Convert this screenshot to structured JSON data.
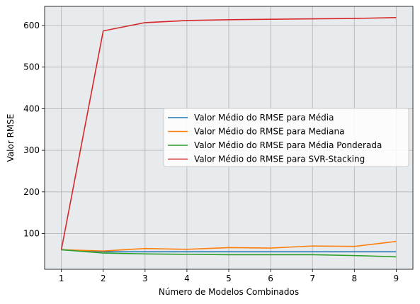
{
  "chart_data": {
    "type": "line",
    "title": "",
    "xlabel": "Número de Modelos Combinados",
    "ylabel": "Valor RMSE",
    "x": [
      1,
      2,
      3,
      4,
      5,
      6,
      7,
      8,
      9
    ],
    "xlim": [
      0.6,
      9.4
    ],
    "ylim": [
      14,
      646
    ],
    "xticks": [
      "1",
      "2",
      "3",
      "4",
      "5",
      "6",
      "7",
      "8",
      "9"
    ],
    "yticks": [
      100,
      200,
      300,
      400,
      500,
      600
    ],
    "grid": true,
    "legend_position": "center-right",
    "series": [
      {
        "name": "Valor Médio do RMSE para Média",
        "color": "#1f77b4",
        "values": [
          61,
          56,
          56,
          56,
          56,
          56,
          56,
          56,
          56
        ]
      },
      {
        "name": "Valor Médio do RMSE para Mediana",
        "color": "#ff7f0e",
        "values": [
          61,
          58,
          64,
          62,
          66,
          65,
          70,
          69,
          81
        ]
      },
      {
        "name": "Valor Médio do RMSE para Média Ponderada",
        "color": "#2ca02c",
        "values": [
          61,
          53,
          51,
          50,
          49,
          49,
          49,
          47,
          44
        ]
      },
      {
        "name": "Valor Médio do RMSE para SVR-Stacking",
        "color": "#d62728",
        "values": [
          61,
          587,
          607,
          612,
          614,
          615,
          616,
          617,
          619
        ]
      }
    ]
  },
  "style": {
    "plot_background": "#e8ebee",
    "grid_color": "#b0b0b0"
  }
}
